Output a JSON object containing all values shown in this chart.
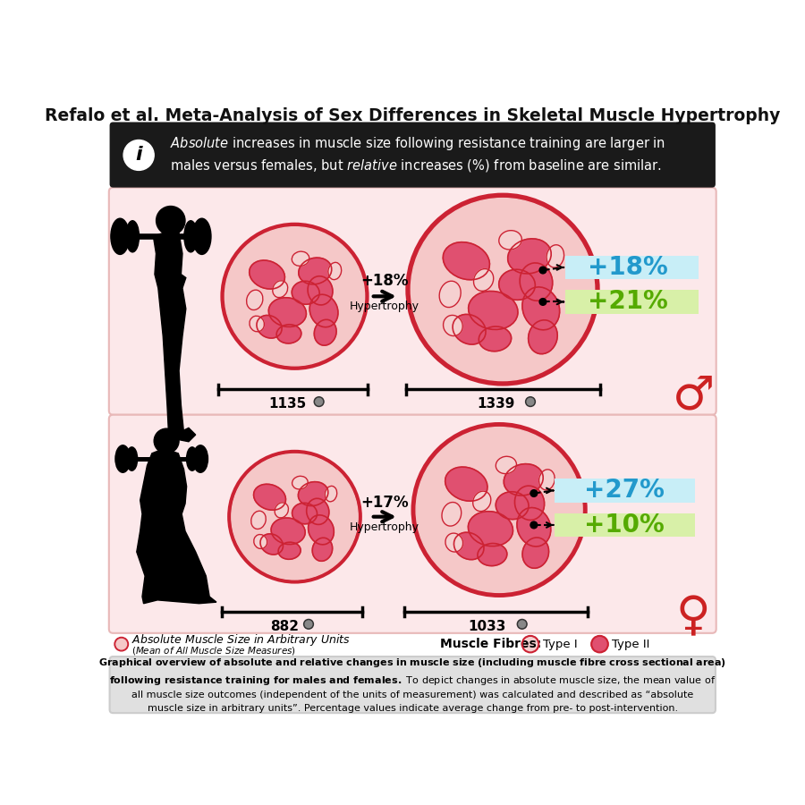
{
  "title": "Refalo et al. Meta-Analysis of Sex Differences in Skeletal Muscle Hypertrophy",
  "info_line1_plain": " increases in muscle size following resistance training are larger in",
  "info_line1_italic": "Absolute",
  "info_line2_plain": "males versus females, but ",
  "info_line2_italic": "relative",
  "info_line2_end": " increases (%) from baseline are similar.",
  "male_pre_value": "1135",
  "male_post_value": "1339",
  "male_hypertrophy_pct": "+18%",
  "male_type1_pct": "+18%",
  "male_type2_pct": "+21%",
  "female_pre_value": "882",
  "female_post_value": "1033",
  "female_hypertrophy_pct": "+17%",
  "female_type1_pct": "+27%",
  "female_type2_pct": "+10%",
  "bg_color": "#ffffff",
  "panel_bg_color": "#fce8ea",
  "info_box_bg": "#1a1a1a",
  "type1_pct_bg": "#c8eef7",
  "type2_pct_bg": "#d8f0a8",
  "type1_pct_color": "#2299cc",
  "type2_pct_color": "#55aa00",
  "bottom_box_bg": "#e0e0e0",
  "bottom_box_border": "#cccccc",
  "muscle_border": "#cc2233",
  "muscle_fill": "#f5c8c8",
  "fiber2_color": "#e05070",
  "fiber1_color": "#f5d0d0",
  "symbol_color": "#cc2222",
  "bar_color": "#111111"
}
